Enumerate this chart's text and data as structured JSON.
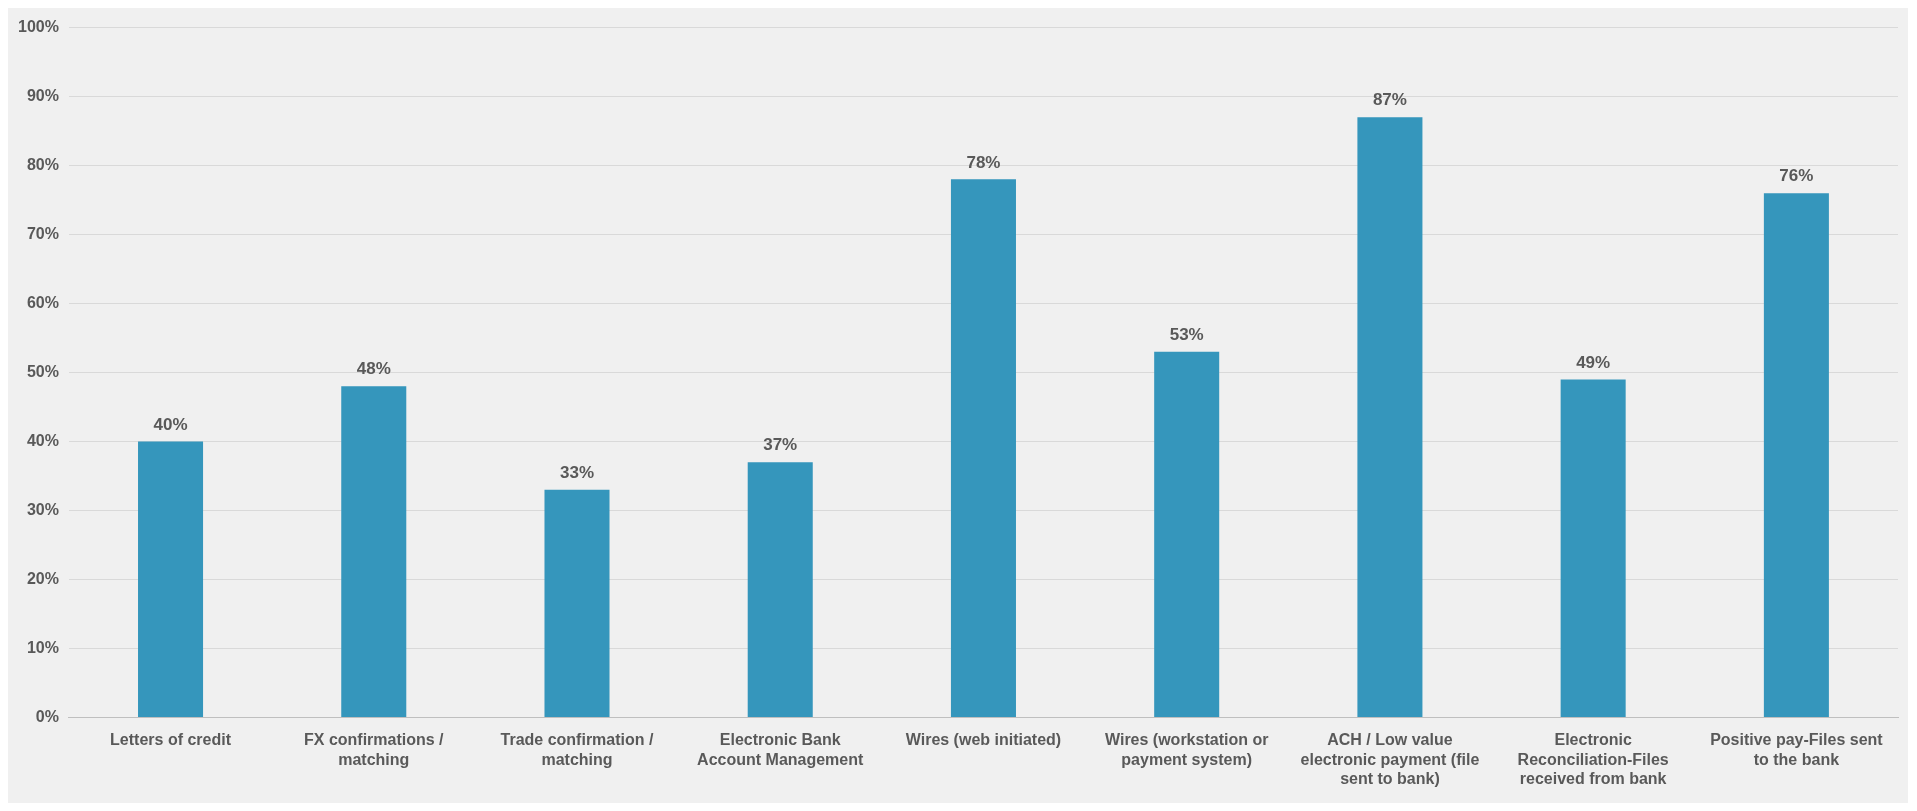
{
  "chart_data": {
    "type": "bar",
    "categories": [
      "Letters of credit",
      "FX confirmations / matching",
      "Trade confirmation / matching",
      "Electronic Bank Account Management",
      "Wires (web initiated)",
      "Wires (workstation or payment system)",
      "ACH / Low value electronic payment (file sent to bank)",
      "Electronic Reconciliation-Files received from bank",
      "Positive pay-Files sent to the bank"
    ],
    "values": [
      40,
      48,
      33,
      37,
      78,
      53,
      87,
      49,
      76
    ],
    "value_labels": [
      "40%",
      "48%",
      "33%",
      "37%",
      "78%",
      "53%",
      "87%",
      "49%",
      "76%"
    ],
    "color": "#3596bc",
    "ylim": [
      0,
      100
    ],
    "yticks": [
      {
        "value": 0,
        "label": "0%"
      },
      {
        "value": 10,
        "label": "10%"
      },
      {
        "value": 20,
        "label": "20%"
      },
      {
        "value": 30,
        "label": "30%"
      },
      {
        "value": 40,
        "label": "40%"
      },
      {
        "value": 50,
        "label": "50%"
      },
      {
        "value": 60,
        "label": "60%"
      },
      {
        "value": 70,
        "label": "70%"
      },
      {
        "value": 80,
        "label": "80%"
      },
      {
        "value": 90,
        "label": "90%"
      },
      {
        "value": 100,
        "label": "100%"
      }
    ],
    "grid": "y",
    "legend": false
  }
}
